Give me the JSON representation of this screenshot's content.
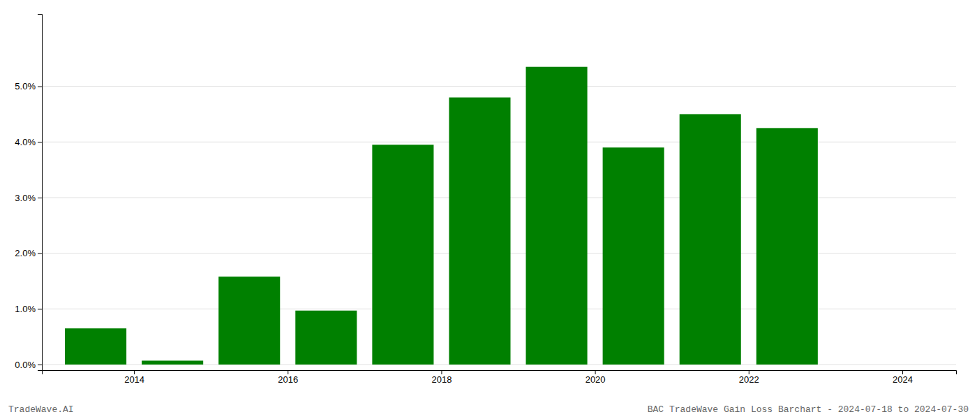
{
  "chart_data": {
    "type": "bar",
    "x": [
      2014,
      2015,
      2016,
      2017,
      2018,
      2019,
      2020,
      2021,
      2022,
      2023
    ],
    "values": [
      0.0065,
      0.0007,
      0.0158,
      0.0097,
      0.0395,
      0.048,
      0.0535,
      0.039,
      0.045,
      0.0425
    ],
    "color": "#008000",
    "xlim": [
      2013.3,
      2025.2
    ],
    "xticks": [
      {
        "value": 2014.5,
        "label": "2014"
      },
      {
        "value": 2016.5,
        "label": "2016"
      },
      {
        "value": 2018.5,
        "label": "2018"
      },
      {
        "value": 2020.5,
        "label": "2020"
      },
      {
        "value": 2022.5,
        "label": "2022"
      },
      {
        "value": 2024.5,
        "label": "2024"
      }
    ],
    "ylim": [
      -0.001,
      0.063
    ],
    "yticks": [
      {
        "value": 0.0,
        "label": "0.0%"
      },
      {
        "value": 0.01,
        "label": "1.0%"
      },
      {
        "value": 0.02,
        "label": "2.0%"
      },
      {
        "value": 0.03,
        "label": "3.0%"
      },
      {
        "value": 0.04,
        "label": "4.0%"
      },
      {
        "value": 0.05,
        "label": "5.0%"
      }
    ],
    "grid": true,
    "annotations": [
      "TradeWave.AI",
      "BAC TradeWave Gain Loss Barchart - 2024-07-18 to 2024-07-30"
    ]
  }
}
